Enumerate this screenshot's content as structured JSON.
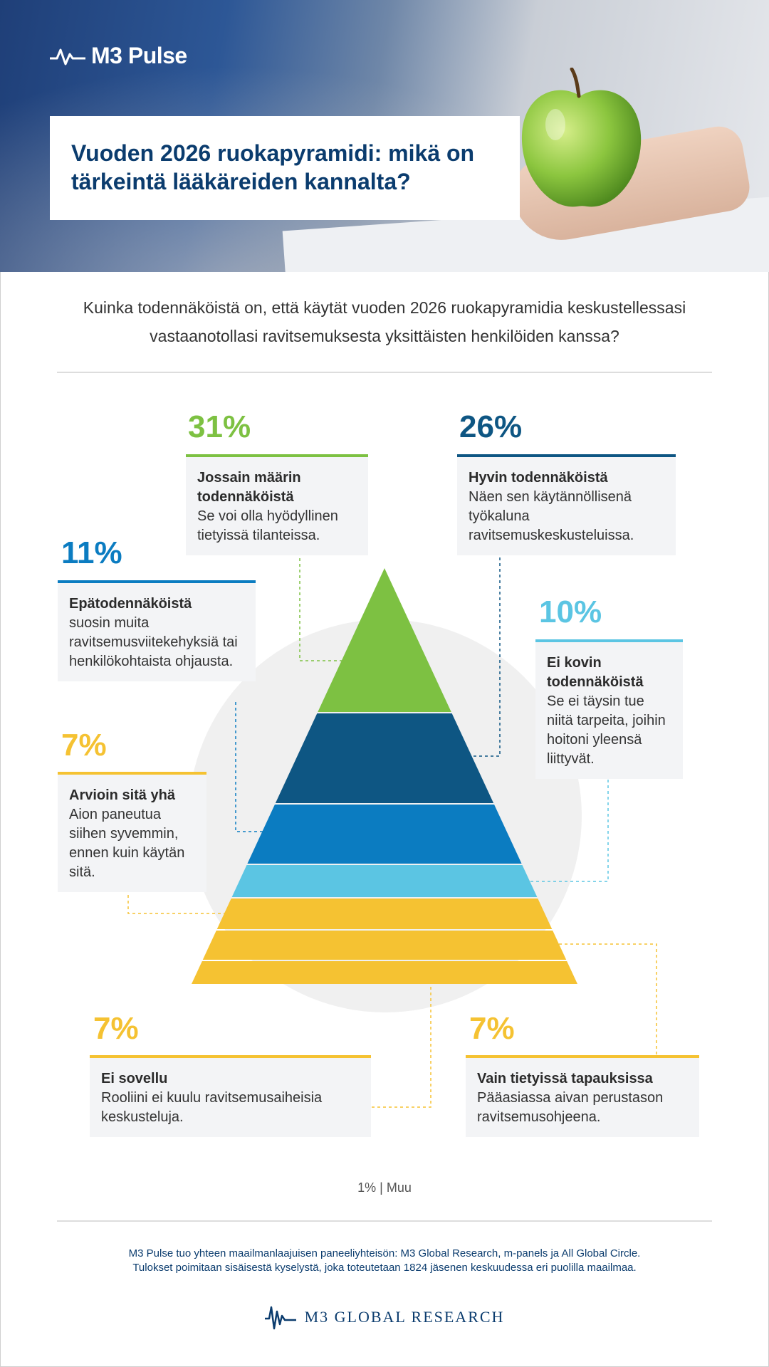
{
  "header": {
    "logo_text": "M3 Pulse",
    "title": "Vuoden 2026 ruokapyramidi: mikä on tärkeintä lääkäreiden kannalta?"
  },
  "question": "Kuinka todennäköistä on, että käytät vuoden 2026 ruokapyramidia keskustellessasi vastaanotollasi ravitsemuksesta yksittäisten henkilöiden kanssa?",
  "colors": {
    "green": "#7dc142",
    "dark_blue": "#0e5683",
    "mid_blue": "#0b7cc1",
    "light_blue": "#5bc5e3",
    "yellow": "#f5c232",
    "navy": "#0b3c6e"
  },
  "chart_data": {
    "type": "pyramid",
    "unit": "%",
    "items": [
      {
        "value": 31,
        "label": "Jossain määrin todennäköistä",
        "description": "Se voi olla hyödyllinen tietyissä tilanteissa.",
        "color": "#7dc142"
      },
      {
        "value": 26,
        "label": "Hyvin todennäköistä",
        "description": "Näen sen käytännöllisenä työkaluna ravitsemuskeskusteluissa.",
        "color": "#0e5683"
      },
      {
        "value": 11,
        "label": "Epätodennäköistä",
        "description": "suosin muita ravitsemusviitekehyksiä tai henkilökohtaista ohjausta.",
        "color": "#0b7cc1"
      },
      {
        "value": 10,
        "label": "Ei kovin todennäköistä",
        "description": "Se ei täysin tue niitä tarpeita, joihin hoitoni yleensä liittyvät.",
        "color": "#5bc5e3"
      },
      {
        "value": 7,
        "label": "Arvioin sitä yhä",
        "description": "Aion paneutua siihen syvemmin, ennen kuin käytän sitä.",
        "color": "#f5c232"
      },
      {
        "value": 7,
        "label": "Vain tietyissä tapauksissa",
        "description": "Pääasiassa aivan perustason ravitsemusohjeena.",
        "color": "#f5c232"
      },
      {
        "value": 7,
        "label": "Ei sovellu",
        "description": "Rooliini ei kuulu ravitsemusaiheisia keskusteluja.",
        "color": "#f5c232"
      }
    ],
    "other": {
      "value": 1,
      "label": "Muu"
    }
  },
  "display": {
    "pct": [
      "31%",
      "26%",
      "11%",
      "10%",
      "7%",
      "7%",
      "7%"
    ],
    "other_text": "1% | Muu"
  },
  "footer": {
    "line1": "M3 Pulse tuo yhteen maailmanlaajuisen paneeliyhteisön: M3 Global Research, m-panels ja All Global Circle.",
    "line2": "Tulokset poimitaan sisäisestä kyselystä, joka toteutetaan 1824 jäsenen keskuudessa eri puolilla maailmaa.",
    "brand": "M3  GLOBAL RESEARCH"
  }
}
